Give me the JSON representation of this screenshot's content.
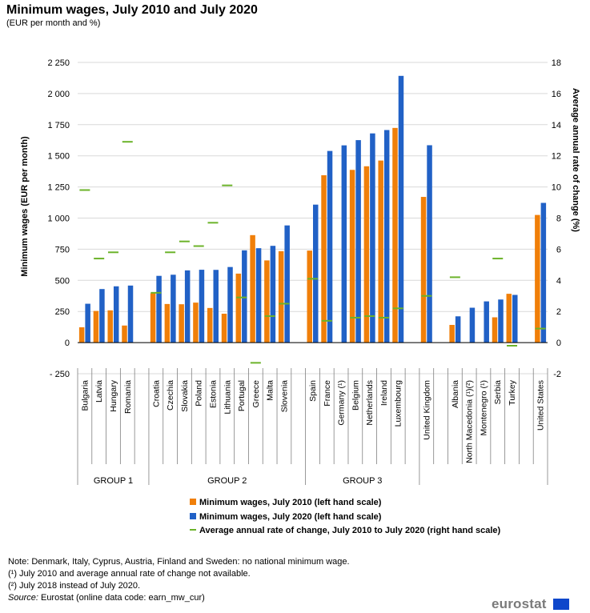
{
  "title": "Minimum wages, July 2010 and July 2020",
  "subtitle": "(EUR per month and %)",
  "notes": {
    "line1": "Note: Denmark, Italy, Cyprus, Austria, Finland and Sweden: no national minimum wage.",
    "line2": "(¹) July 2010 and average annual rate of change not available.",
    "line3": "(²) July 2018 instead of July 2020.",
    "source_label": "Source:",
    "source_text": " Eurostat (online data code: earn_mw_cur)"
  },
  "logo": "eurostat",
  "colors": {
    "s2010": "#f07f09",
    "s2020": "#2161c6",
    "rate": "#6cb32a",
    "grid": "#d9d9d9",
    "axis": "#000000"
  },
  "chart_data": {
    "type": "bar",
    "title": "Minimum wages, July 2010 and July 2020",
    "subtitle": "(EUR per month and %)",
    "ylabel": "Minimum wages (EUR per month)",
    "y2label": "Average annual rate of change (%)",
    "ylim": [
      -250,
      2250
    ],
    "y2lim": [
      -2,
      18
    ],
    "yticks": [
      "- 250",
      "0",
      "250",
      "500",
      "750",
      "1 000",
      "1 250",
      "1 500",
      "1 750",
      "2 000",
      "2 250"
    ],
    "yticks_values": [
      -250,
      0,
      250,
      500,
      750,
      1000,
      1250,
      1500,
      1750,
      2000,
      2250
    ],
    "y2ticks": [
      "-2",
      "0",
      "2",
      "4",
      "6",
      "8",
      "10",
      "12",
      "14",
      "16",
      "18"
    ],
    "y2ticks_values": [
      -2,
      0,
      2,
      4,
      6,
      8,
      10,
      12,
      14,
      16,
      18
    ],
    "grid": true,
    "legend_position": "bottom",
    "categories": [
      "Bulgaria",
      "Latvia",
      "Hungary",
      "Romania",
      "",
      "Croatia",
      "Czechia",
      "Slovakia",
      "Poland",
      "Estonia",
      "Lithuania",
      "Portugal",
      "Greece",
      "Malta",
      "Slovenia",
      "",
      "Spain",
      "France",
      "Germany (¹)",
      "Belgium",
      "Netherlands",
      "Ireland",
      "Luxembourg",
      "",
      "United Kingdom",
      "",
      "Albania",
      "North Macedonia (¹)(²)",
      "Montenegro (¹)",
      "Serbia",
      "Turkey",
      "",
      "United States"
    ],
    "series": [
      {
        "name": "Minimum wages, July 2010 (left hand scale)",
        "type": "bar",
        "values": [
          123,
          254,
          259,
          137,
          null,
          396,
          310,
          308,
          321,
          278,
          232,
          554,
          863,
          660,
          734,
          null,
          739,
          1344,
          null,
          1387,
          1416,
          1462,
          1724,
          null,
          1170,
          null,
          142,
          null,
          null,
          203,
          392,
          null,
          1025
        ]
      },
      {
        "name": "Minimum wages, July 2020 (left hand scale)",
        "type": "bar",
        "values": [
          312,
          430,
          452,
          458,
          null,
          536,
          545,
          580,
          585,
          584,
          607,
          741,
          758,
          777,
          941,
          null,
          1108,
          1539,
          1584,
          1626,
          1680,
          1707,
          2142,
          null,
          1585,
          null,
          211,
          280,
          331,
          346,
          383,
          null,
          1122
        ]
      },
      {
        "name": "Average annual rate of change, July 2010 to July 2020 (right hand scale)",
        "type": "marker",
        "values": [
          9.8,
          5.4,
          5.8,
          12.9,
          null,
          3.2,
          5.8,
          6.5,
          6.2,
          7.7,
          10.1,
          2.9,
          -1.3,
          1.7,
          2.5,
          null,
          4.1,
          1.4,
          null,
          1.6,
          1.7,
          1.6,
          2.2,
          null,
          3.0,
          null,
          4.2,
          null,
          null,
          5.4,
          -0.2,
          null,
          0.9
        ]
      }
    ],
    "groups": [
      {
        "label": "GROUP 1",
        "start": 0,
        "end": 4
      },
      {
        "label": "GROUP 2",
        "start": 5,
        "end": 15
      },
      {
        "label": "GROUP 3",
        "start": 16,
        "end": 23
      }
    ]
  }
}
